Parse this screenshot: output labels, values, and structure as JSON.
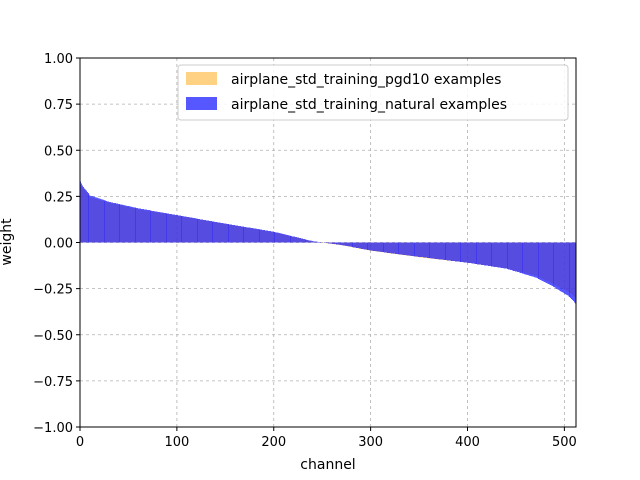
{
  "chart_data": {
    "type": "bar",
    "xlabel": "channel",
    "ylabel": "weight",
    "xlim": [
      0,
      512
    ],
    "ylim": [
      -1.0,
      1.0
    ],
    "grid": true,
    "legend_position": "top-right",
    "x_ticks": [
      0,
      100,
      200,
      300,
      400,
      500
    ],
    "x_tick_labels": [
      "0",
      "100",
      "200",
      "300",
      "400",
      "500"
    ],
    "y_ticks": [
      1.0,
      0.75,
      0.5,
      0.25,
      0.0,
      -0.25,
      -0.5,
      -0.75,
      -1.0
    ],
    "y_tick_labels": [
      "1.00",
      "0.75",
      "0.50",
      "0.25",
      "0.00",
      "−0.25",
      "−0.50",
      "−0.75",
      "−1.00"
    ],
    "channel_count": 512,
    "series": [
      {
        "name": "airplane_std_training_pgd10 examples",
        "color": "#fdb42f",
        "alpha": 0.6,
        "sorted_weight_profile": {
          "channels": [
            0,
            3,
            10,
            30,
            60,
            100,
            150,
            200,
            240,
            270,
            300,
            350,
            400,
            440,
            470,
            490,
            505,
            511
          ],
          "weights": [
            0.31,
            0.29,
            0.245,
            0.215,
            0.18,
            0.145,
            0.1,
            0.055,
            0.005,
            -0.015,
            -0.045,
            -0.08,
            -0.11,
            -0.14,
            -0.18,
            -0.23,
            -0.27,
            -0.3
          ]
        }
      },
      {
        "name": "airplane_std_training_natural examples",
        "color": "#1f1fff",
        "alpha": 0.75,
        "sorted_weight_profile": {
          "channels": [
            0,
            3,
            10,
            30,
            60,
            100,
            150,
            200,
            240,
            270,
            300,
            350,
            400,
            440,
            470,
            490,
            505,
            511
          ],
          "weights": [
            0.33,
            0.3,
            0.255,
            0.22,
            0.185,
            0.148,
            0.102,
            0.058,
            0.007,
            -0.014,
            -0.044,
            -0.078,
            -0.11,
            -0.142,
            -0.19,
            -0.245,
            -0.295,
            -0.33
          ]
        }
      }
    ]
  }
}
